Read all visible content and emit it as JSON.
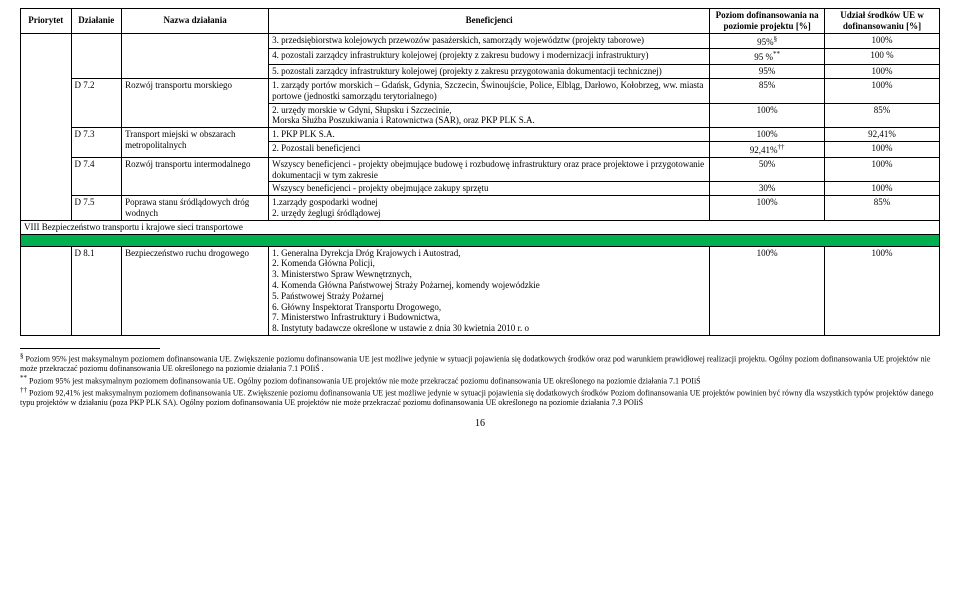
{
  "table": {
    "headers": {
      "priorytet": "Priorytet",
      "dzialanie": "Działanie",
      "nazwa": "Nazwa działania",
      "beneficjenci": "Beneficjenci",
      "poziom": "Poziom dofinansowania na poziomie projektu [%]",
      "udzial": "Udział środków UE w dofinansowaniu [%]"
    },
    "rows": {
      "r0": {
        "benef": "3. przedsiębiorstwa kolejowych przewozów pasażerskich, samorządy województw (projekty taborowe)",
        "poziom": "95%",
        "poziom_sup": "§",
        "udzial": "100%"
      },
      "r1": {
        "benef": "4. pozostali zarządcy infrastruktury kolejowej (projekty z zakresu budowy i modernizacji infrastruktury)",
        "poziom": "95 %",
        "poziom_sup": "**",
        "udzial": "100 %"
      },
      "r2": {
        "benef": "5. pozostali zarządcy infrastruktury kolejowej (projekty z zakresu przygotowania dokumentacji technicznej)",
        "poziom": "95%",
        "udzial": "100%"
      },
      "r3": {
        "dzialanie": "D 7.2",
        "nazwa": "Rozwój transportu morskiego",
        "benef": "1. zarządy portów morskich – Gdańsk, Gdynia, Szczecin, Świnoujście, Police, Elbląg, Darłowo, Kołobrzeg, ww. miasta portowe (jednostki samorządu terytorialnego)",
        "poziom": "85%",
        "udzial": "100%"
      },
      "r4": {
        "benef": "2. urzędy morskie w Gdyni, Słupsku i Szczecinie,\nMorska Służba Poszukiwania i Ratownictwa (SAR), oraz PKP PLK S.A.",
        "poziom": "100%",
        "udzial": "85%"
      },
      "r5": {
        "dzialanie": "D 7.3",
        "nazwa": "Transport miejski w obszarach metropolitalnych",
        "benef": "1. PKP PLK S.A.",
        "poziom": "100%",
        "udzial": "92,41%"
      },
      "r6": {
        "benef": "2. Pozostali beneficjenci",
        "poziom": "92,41%",
        "poziom_sup": "††",
        "udzial": "100%"
      },
      "r7": {
        "dzialanie": "D 7.4",
        "nazwa": "Rozwój transportu intermodalnego",
        "benef": "Wszyscy beneficjenci - projekty obejmujące budowę i rozbudowę infrastruktury oraz prace projektowe i przygotowanie dokumentacji w tym zakresie",
        "poziom": "50%",
        "udzial": "100%"
      },
      "r8": {
        "benef": "Wszyscy beneficjenci - projekty obejmujące zakupy sprzętu",
        "poziom": "30%",
        "udzial": "100%"
      },
      "r9": {
        "dzialanie": "D 7.5",
        "nazwa": "Poprawa stanu śródlądowych dróg wodnych",
        "benef": "1.zarządy gospodarki wodnej\n2. urzędy żeglugi śródlądowej",
        "poziom": "100%",
        "udzial": "85%"
      },
      "sec8": {
        "label": "VIII Bezpieczeństwo transportu i krajowe sieci transportowe"
      },
      "r10": {
        "dzialanie": "D 8.1",
        "nazwa": "Bezpieczeństwo ruchu drogowego",
        "benef": "1. Generalna Dyrekcja Dróg Krajowych i Autostrad,\n2. Komenda Główna Policji,\n3. Ministerstwo Spraw Wewnętrznych,\n4. Komenda Główna Państwowej Straży Pożarnej, komendy wojewódzkie\n5. Państwowej Straży Pożarnej\n6. Główny Inspektorat Transportu Drogowego,\n7. Ministerstwo Infrastruktury i Budownictwa,\n8. Instytuty badawcze określone w ustawie z dnia 30 kwietnia 2010 r. o",
        "poziom": "100%",
        "udzial": "100%"
      }
    }
  },
  "footnotes": {
    "f1_sup": "§",
    "f1": " Poziom 95% jest maksymalnym poziomem dofinansowania UE. Zwiększenie poziomu dofinansowania UE jest możliwe jedynie w sytuacji pojawienia się dodatkowych środków oraz pod warunkiem prawidłowej realizacji projektu. Ogólny poziom dofinansowania UE projektów nie może przekraczać poziomu dofinansowania UE określonego na poziomie działania 7.1 POIiŚ .",
    "f2_sup": "**",
    "f2": " Poziom 95% jest maksymalnym poziomem dofinansowania UE. Ogólny poziom dofinansowania UE projektów nie może przekraczać poziomu dofinansowania UE określonego na poziomie działania 7.1 POIiŚ",
    "f3_sup": "††",
    "f3": " Poziom 92,41% jest maksymalnym poziomem dofinansowania UE. Zwiększenie poziomu dofinansowania UE jest możliwe jedynie w sytuacji pojawienia się dodatkowych środków Poziom dofinansowania UE projektów powinien być równy dla wszystkich typów projektów danego typu projektów w działaniu (poza PKP PLK SA). Ogólny poziom dofinansowania UE projektów nie może przekraczać poziomu dofinansowania UE określonego na poziomie działania 7.3 POIiŚ"
  },
  "page_number": "16"
}
